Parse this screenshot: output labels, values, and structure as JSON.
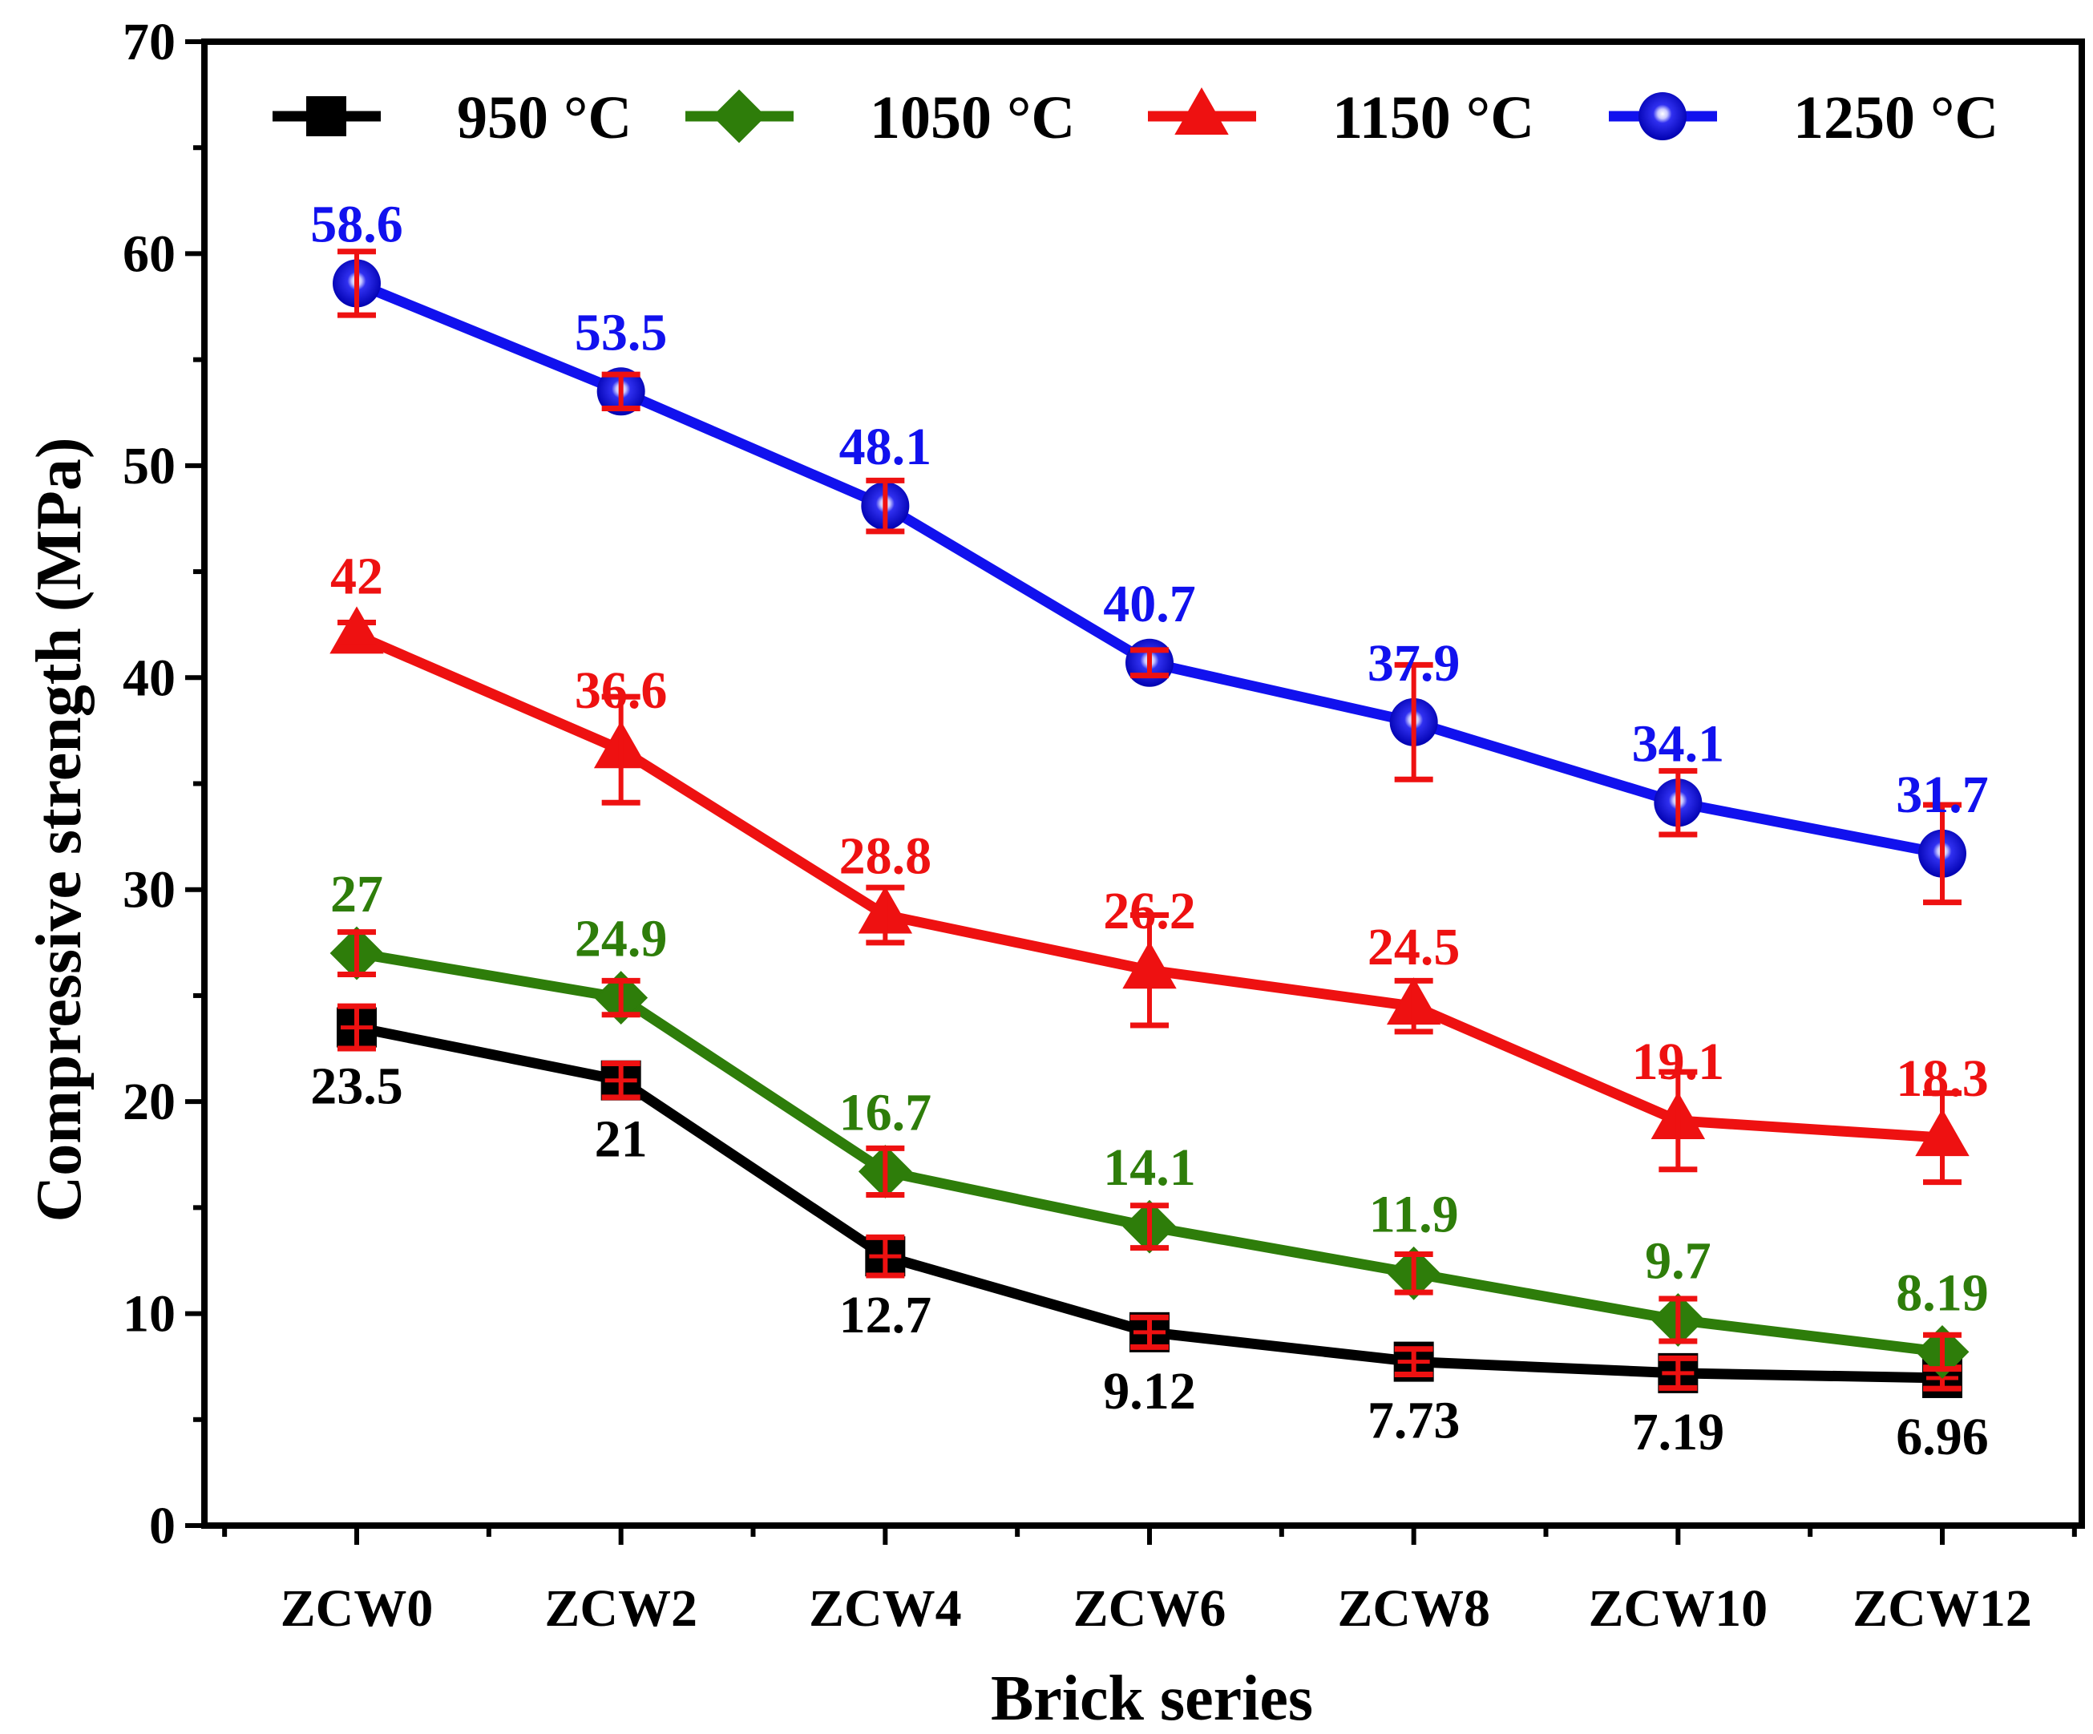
{
  "chart_data": {
    "type": "line",
    "xlabel": "Brick series",
    "ylabel": "Compressive strength (MPa)",
    "ylim": [
      0,
      70
    ],
    "yticks": [
      0,
      10,
      20,
      30,
      40,
      50,
      60,
      70
    ],
    "categories": [
      "ZCW0",
      "ZCW2",
      "ZCW4",
      "ZCW6",
      "ZCW8",
      "ZCW10",
      "ZCW12"
    ],
    "legend_position": "top",
    "series": [
      {
        "name": "950 °C",
        "color": "#000000",
        "marker": "square",
        "label_position": "below",
        "values": [
          23.5,
          21,
          12.7,
          9.12,
          7.73,
          7.19,
          6.96
        ],
        "labels": [
          "23.5",
          "21",
          "12.7",
          "9.12",
          "7.73",
          "7.19",
          "6.96"
        ],
        "errors": [
          1.0,
          0.8,
          0.9,
          0.7,
          0.6,
          0.7,
          0.5
        ]
      },
      {
        "name": "1050 °C",
        "color": "#2e7d0a",
        "marker": "diamond",
        "label_position": "above",
        "values": [
          27,
          24.9,
          16.7,
          14.1,
          11.9,
          9.7,
          8.19
        ],
        "labels": [
          "27",
          "24.9",
          "16.7",
          "14.1",
          "11.9",
          "9.7",
          "8.19"
        ],
        "errors": [
          1.0,
          0.8,
          1.1,
          1.0,
          0.9,
          1.0,
          0.8
        ]
      },
      {
        "name": "1150 °C",
        "color": "#ee1111",
        "marker": "triangle",
        "label_position": "above",
        "values": [
          42,
          36.6,
          28.8,
          26.2,
          24.5,
          19.1,
          18.3
        ],
        "labels": [
          "42",
          "36.6",
          "28.8",
          "26.2",
          "24.5",
          "19.1",
          "18.3"
        ],
        "errors": [
          0.6,
          2.5,
          1.3,
          2.6,
          1.2,
          2.3,
          2.1
        ]
      },
      {
        "name": "1250 °C",
        "color": "#1111ee",
        "marker": "sphere",
        "label_position": "above",
        "values": [
          58.6,
          53.5,
          48.1,
          40.7,
          37.9,
          34.1,
          31.7
        ],
        "labels": [
          "58.6",
          "53.5",
          "48.1",
          "40.7",
          "37.9",
          "34.1",
          "31.7"
        ],
        "errors": [
          1.5,
          0.8,
          1.2,
          0.6,
          2.7,
          1.5,
          2.3
        ]
      }
    ]
  }
}
